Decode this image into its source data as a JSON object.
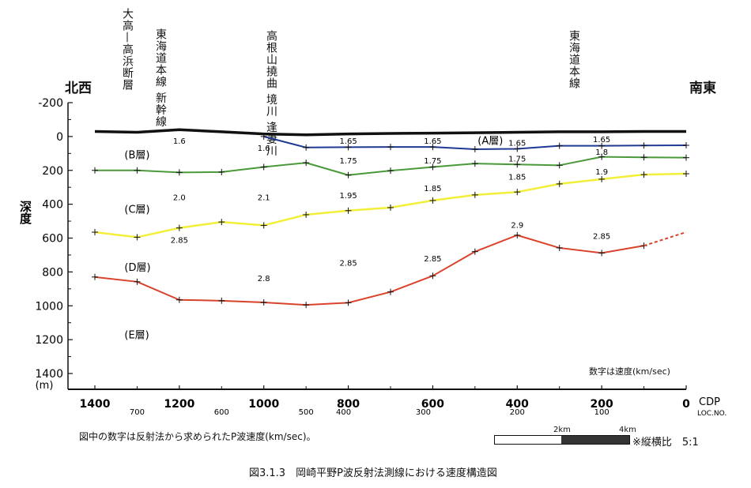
{
  "direction": {
    "left": "北西",
    "right": "南東"
  },
  "features": [
    {
      "lines": [
        "大高—高浜断層"
      ],
      "cdp": 1320
    },
    {
      "lines": [
        "東海道本線",
        "新幹線"
      ],
      "cdp": 1220
    },
    {
      "lines": [
        "高根山撓曲",
        "境川",
        "逢妻川"
      ],
      "cdp": 950
    },
    {
      "lines": [
        "東海道本線"
      ],
      "cdp": 260
    }
  ],
  "note_right": "数字は速度(km/sec)",
  "caption_left": "図中の数字は反射法から求められたP波速度(km/sec)。",
  "scale": {
    "label_2km": "2km",
    "label_4km": "4km",
    "ratio": "※縦横比　5:1"
  },
  "figure_title": "図3.1.3　岡崎平野P波反射法測線における速度構造図",
  "chart_data": {
    "type": "line",
    "ylabel": "深度",
    "y_unit": "(m)",
    "xlabel": "CDP",
    "xlabel2": "LOC.NO.",
    "xlim": [
      1400,
      0
    ],
    "ylim": [
      1400,
      -200
    ],
    "x_ticks": [
      1400,
      1200,
      1000,
      800,
      600,
      400,
      200,
      0
    ],
    "y_ticks": [
      -200,
      0,
      200,
      400,
      600,
      800,
      1000,
      1200,
      1400
    ],
    "loc_labels": [
      {
        "x": 1300,
        "label": "700"
      },
      {
        "x": 1100,
        "label": "600"
      },
      {
        "x": 900,
        "label": "500"
      },
      {
        "x": 800,
        "label": "400"
      },
      {
        "x": 600,
        "label": "300"
      },
      {
        "x": 400,
        "label": "200"
      },
      {
        "x": 200,
        "label": "100"
      }
    ],
    "series": [
      {
        "color": "#111111",
        "width": 3.5,
        "marks": false,
        "x": [
          1400,
          1300,
          1200,
          1100,
          1000,
          900,
          800,
          700,
          600,
          500,
          400,
          300,
          200,
          100,
          0
        ],
        "y": [
          -30,
          -25,
          -40,
          -28,
          -15,
          -10,
          -15,
          -18,
          -20,
          -22,
          -25,
          -28,
          -28,
          -30,
          -30
        ]
      },
      {
        "color": "#1f3a93",
        "width": 2,
        "marks": true,
        "x": [
          1000,
          900,
          800,
          700,
          600,
          500,
          400,
          300,
          200,
          100,
          0
        ],
        "y": [
          0,
          65,
          63,
          62,
          62,
          75,
          73,
          55,
          55,
          53,
          52
        ]
      },
      {
        "color": "#4a9a3a",
        "width": 2,
        "marks": true,
        "x": [
          1400,
          1300,
          1200,
          1100,
          1000,
          900,
          800,
          700,
          600,
          500,
          400,
          300,
          200,
          100,
          0
        ],
        "y": [
          200,
          200,
          212,
          210,
          180,
          155,
          228,
          202,
          180,
          160,
          165,
          170,
          120,
          123,
          125
        ]
      },
      {
        "color": "#f2ef3a",
        "width": 2.5,
        "marks": true,
        "x": [
          1400,
          1300,
          1200,
          1100,
          1000,
          900,
          800,
          700,
          600,
          500,
          400,
          300,
          200,
          100,
          0
        ],
        "y": [
          565,
          595,
          540,
          505,
          525,
          462,
          438,
          420,
          378,
          345,
          328,
          280,
          252,
          225,
          220
        ]
      },
      {
        "color": "#d9432b",
        "width": 2,
        "marks": true,
        "x": [
          1400,
          1300,
          1200,
          1100,
          1000,
          900,
          800,
          700,
          600,
          500,
          400,
          300,
          200,
          100
        ],
        "y": [
          830,
          858,
          965,
          970,
          980,
          995,
          982,
          918,
          823,
          680,
          583,
          658,
          688,
          645
        ]
      },
      {
        "color": "#d9432b",
        "width": 2,
        "marks": false,
        "dashed": true,
        "x": [
          100,
          0
        ],
        "y": [
          645,
          565
        ]
      }
    ],
    "layer_labels": [
      {
        "text": "(A層)",
        "x": 400,
        "y": 22
      },
      {
        "text": "(B層)",
        "x": 1330,
        "y": 105
      },
      {
        "text": "(C層)",
        "x": 1330,
        "y": 428
      },
      {
        "text": "(D層)",
        "x": 1330,
        "y": 770
      },
      {
        "text": "(E層)",
        "x": 1330,
        "y": 1170
      }
    ],
    "velocity_labels": [
      {
        "text": "1.6",
        "x": 1200,
        "y": 25
      },
      {
        "text": "1.6",
        "x": 1000,
        "y": 65
      },
      {
        "text": "1.65",
        "x": 800,
        "y": 25
      },
      {
        "text": "1.65",
        "x": 600,
        "y": 25
      },
      {
        "text": "1.65",
        "x": 400,
        "y": 35
      },
      {
        "text": "1.65",
        "x": 200,
        "y": 15
      },
      {
        "text": "1.75",
        "x": 800,
        "y": 140
      },
      {
        "text": "1.75",
        "x": 600,
        "y": 140
      },
      {
        "text": "1.75",
        "x": 400,
        "y": 130
      },
      {
        "text": "1.8",
        "x": 200,
        "y": 90
      },
      {
        "text": "2.0",
        "x": 1200,
        "y": 358
      },
      {
        "text": "2.1",
        "x": 1000,
        "y": 358
      },
      {
        "text": "1.95",
        "x": 800,
        "y": 345
      },
      {
        "text": "1.85",
        "x": 600,
        "y": 303
      },
      {
        "text": "1.85",
        "x": 400,
        "y": 235
      },
      {
        "text": "1.9",
        "x": 200,
        "y": 205
      },
      {
        "text": "2.85",
        "x": 1200,
        "y": 610
      },
      {
        "text": "2.9",
        "x": 400,
        "y": 520
      },
      {
        "text": "2.85",
        "x": 200,
        "y": 585
      },
      {
        "text": "2.85",
        "x": 800,
        "y": 745
      },
      {
        "text": "2.85",
        "x": 600,
        "y": 718
      },
      {
        "text": "2.8",
        "x": 1000,
        "y": 835
      }
    ]
  }
}
